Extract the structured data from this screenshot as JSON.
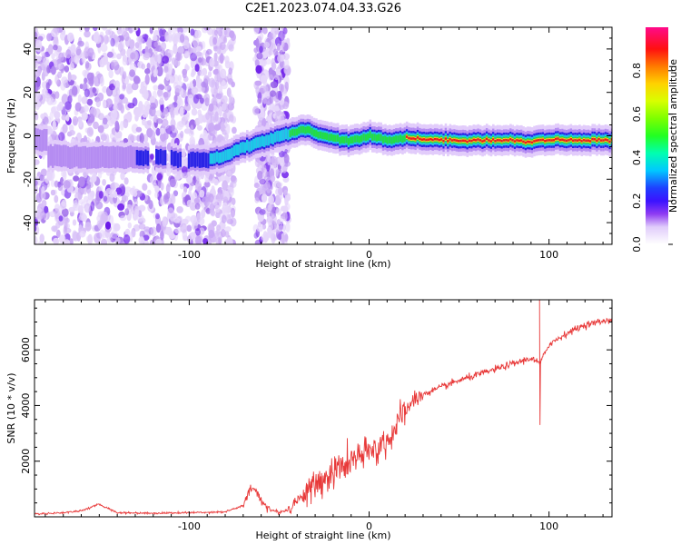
{
  "title": "C2E1.2023.074.04.33.G26",
  "chart_data": [
    {
      "type": "heatmap",
      "xlabel": "Height of straight line (km)",
      "ylabel": "Frequency (Hz)",
      "xlim": [
        -186,
        135
      ],
      "ylim": [
        -50,
        50
      ],
      "xticks": [
        -100,
        0,
        100
      ],
      "yticks": [
        -40,
        -20,
        0,
        20,
        40
      ],
      "colorbar": {
        "label": "Normalized spectral amplitude",
        "range": [
          0.0,
          1.0
        ],
        "ticks": [
          0.0,
          0.2,
          0.4,
          0.6,
          0.8
        ],
        "colormap": "gist_rainbow"
      },
      "ridge": {
        "x": [
          -180,
          -160,
          -140,
          -120,
          -100,
          -90,
          -80,
          -70,
          -60,
          -50,
          -40,
          -35,
          -30,
          -25,
          -20,
          -15,
          -10,
          -5,
          0,
          5,
          10,
          20,
          40,
          60,
          80,
          88,
          95,
          110,
          135
        ],
        "y": [
          -9,
          -10,
          -10,
          -10,
          -11,
          -11,
          -9,
          -5,
          -3,
          0,
          2,
          3,
          1,
          0,
          -1,
          -2,
          -2,
          -1,
          0,
          -1,
          -2,
          -1,
          -2,
          -2,
          -2,
          -3,
          -2,
          -2,
          -2
        ]
      },
      "noise_region_x": [
        -186,
        -45
      ]
    },
    {
      "type": "line",
      "xlabel": "Height of straight line (km)",
      "ylabel": "SNR (10 * v/v)",
      "xlim": [
        -186,
        135
      ],
      "ylim": [
        0,
        7800
      ],
      "xticks": [
        -100,
        0,
        100
      ],
      "yticks": [
        2000,
        4000,
        6000
      ],
      "color": "#e83a3a",
      "series": [
        {
          "x": [
            -186,
            -170,
            -160,
            -150,
            -140,
            -120,
            -100,
            -80,
            -70,
            -65,
            -60,
            -55,
            -50,
            -45,
            -40,
            -30,
            -20,
            -10,
            0,
            10,
            20,
            25,
            30,
            50,
            70,
            90,
            95,
            100,
            110,
            120,
            135
          ],
          "y": [
            100,
            150,
            220,
            450,
            150,
            130,
            150,
            180,
            400,
            1100,
            600,
            250,
            160,
            250,
            600,
            1100,
            1600,
            2000,
            2300,
            2700,
            3800,
            4200,
            4400,
            4900,
            5300,
            5700,
            5500,
            6200,
            6600,
            6900,
            7100
          ]
        }
      ],
      "annotations": {
        "spike": {
          "x": 95,
          "y_high": 7800,
          "y_low": 3300
        }
      }
    }
  ]
}
